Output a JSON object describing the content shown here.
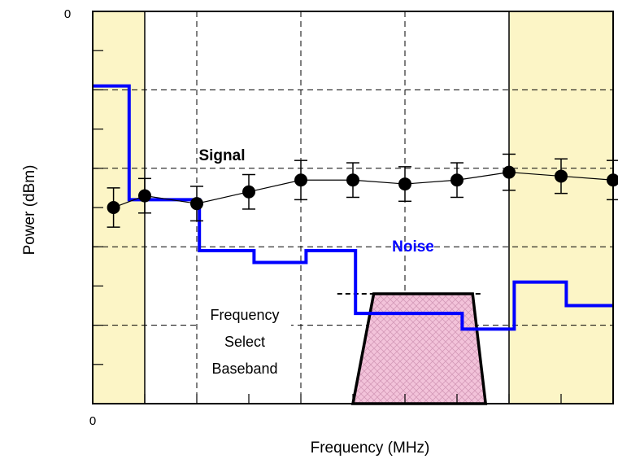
{
  "chart_data": {
    "type": "line",
    "xlabel": "Frequency (MHz)",
    "ylabel": "Power (dBm)",
    "x_origin_label": "0",
    "y_origin_label": "0",
    "grid": "dashed",
    "shaded_bands": [
      [
        0,
        1
      ],
      [
        8,
        10
      ]
    ],
    "series": [
      {
        "name": "Signal",
        "style": "markers-with-error-bars",
        "x": [
          0.4,
          1,
          2,
          3,
          4,
          5,
          6,
          7,
          8,
          9,
          10
        ],
        "y": [
          -2.5,
          -2.35,
          -2.45,
          -2.3,
          -2.15,
          -2.15,
          -2.2,
          -2.15,
          -2.05,
          -2.1,
          -2.15
        ],
        "error": [
          0.25,
          0.22,
          0.22,
          0.22,
          0.25,
          0.22,
          0.22,
          0.22,
          0.23,
          0.22,
          0.25
        ]
      },
      {
        "name": "Noise",
        "style": "step",
        "x": [
          0,
          0.7,
          0.7,
          2.05,
          2.05,
          3.1,
          3.1,
          4.1,
          4.1,
          5.05,
          5.05,
          7.1,
          7.1,
          8.1,
          8.1,
          9.1,
          9.1,
          10
        ],
        "y": [
          -0.95,
          -0.95,
          -2.4,
          -2.4,
          -3.05,
          -3.05,
          -3.2,
          -3.2,
          -3.05,
          -3.05,
          -3.85,
          -3.85,
          -4.05,
          -4.05,
          -3.45,
          -3.45,
          -3.75,
          -3.75
        ]
      }
    ],
    "baseband_filter": {
      "label": "Frequency Select Baseband",
      "label_lines": [
        "Frequency",
        "Select",
        "Baseband"
      ],
      "top": -3.6,
      "top_left": 5.4,
      "top_right": 7.3,
      "bottom_left": 5.0,
      "bottom_right": 7.55,
      "dashed_top_from": 4.7,
      "dashed_top_to": 7.5
    },
    "xlim": [
      0,
      10
    ],
    "ylim": [
      -5,
      0
    ],
    "colors": {
      "band_fill": "#fcf5c6",
      "signal": "#000000",
      "noise": "#0000ff",
      "filter_fill": "#f3c3da",
      "filter_hatch": "#d49ab8"
    }
  }
}
